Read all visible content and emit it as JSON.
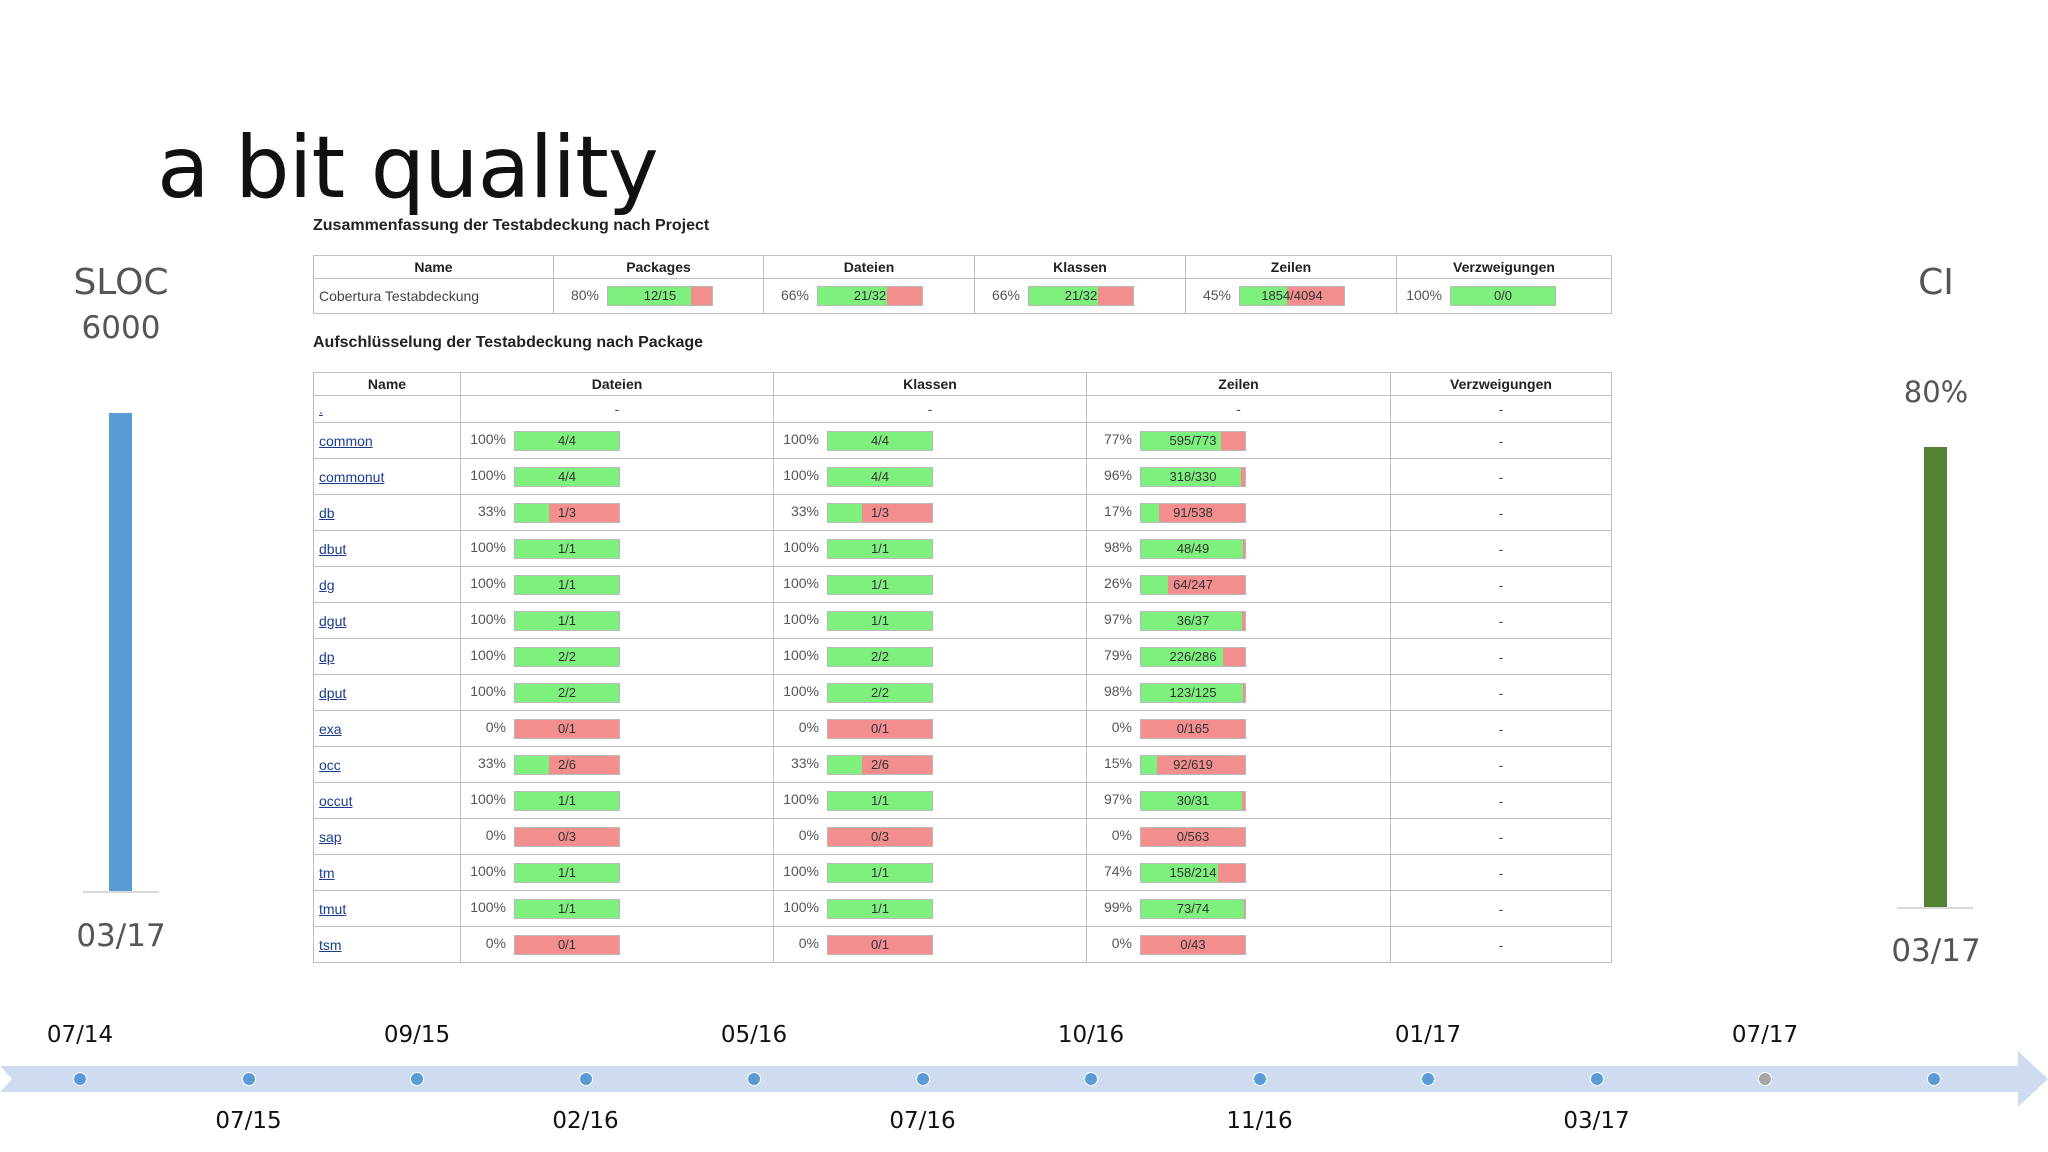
{
  "title": "a bit quality",
  "left": {
    "label": "SLOC",
    "value": "6000",
    "date": "03/17"
  },
  "right": {
    "label": "CI",
    "value": "80%",
    "date": "03/17"
  },
  "summary": {
    "heading": "Zusammenfassung der Testabdeckung nach Project",
    "columns": [
      "Name",
      "Packages",
      "Dateien",
      "Klassen",
      "Zeilen",
      "Verzweigungen"
    ],
    "row": {
      "name": "Cobertura Testabdeckung",
      "cells": [
        {
          "pct": "80%",
          "label": "12/15",
          "fraction": 0.8
        },
        {
          "pct": "66%",
          "label": "21/32",
          "fraction": 0.66
        },
        {
          "pct": "66%",
          "label": "21/32",
          "fraction": 0.66
        },
        {
          "pct": "45%",
          "label": "1854/4094",
          "fraction": 0.45
        },
        {
          "pct": "100%",
          "label": "0/0",
          "fraction": 1.0
        }
      ]
    }
  },
  "packages": {
    "heading": "Aufschlüsselung der Testabdeckung nach Package",
    "columns": [
      "Name",
      "Dateien",
      "Klassen",
      "Zeilen",
      "Verzweigungen"
    ],
    "first_row": {
      "name": ".",
      "dash": "-"
    },
    "rows": [
      {
        "name": "common",
        "dateien": {
          "pct": "100%",
          "label": "4/4",
          "fraction": 1.0
        },
        "klassen": {
          "pct": "100%",
          "label": "4/4",
          "fraction": 1.0
        },
        "zeilen": {
          "pct": "77%",
          "label": "595/773",
          "fraction": 0.77
        },
        "verzweigungen": "-"
      },
      {
        "name": "commonut",
        "dateien": {
          "pct": "100%",
          "label": "4/4",
          "fraction": 1.0
        },
        "klassen": {
          "pct": "100%",
          "label": "4/4",
          "fraction": 1.0
        },
        "zeilen": {
          "pct": "96%",
          "label": "318/330",
          "fraction": 0.96
        },
        "verzweigungen": "-"
      },
      {
        "name": "db",
        "dateien": {
          "pct": "33%",
          "label": "1/3",
          "fraction": 0.33
        },
        "klassen": {
          "pct": "33%",
          "label": "1/3",
          "fraction": 0.33
        },
        "zeilen": {
          "pct": "17%",
          "label": "91/538",
          "fraction": 0.17
        },
        "verzweigungen": "-"
      },
      {
        "name": "dbut",
        "dateien": {
          "pct": "100%",
          "label": "1/1",
          "fraction": 1.0
        },
        "klassen": {
          "pct": "100%",
          "label": "1/1",
          "fraction": 1.0
        },
        "zeilen": {
          "pct": "98%",
          "label": "48/49",
          "fraction": 0.98
        },
        "verzweigungen": "-"
      },
      {
        "name": "dg",
        "dateien": {
          "pct": "100%",
          "label": "1/1",
          "fraction": 1.0
        },
        "klassen": {
          "pct": "100%",
          "label": "1/1",
          "fraction": 1.0
        },
        "zeilen": {
          "pct": "26%",
          "label": "64/247",
          "fraction": 0.26
        },
        "verzweigungen": "-"
      },
      {
        "name": "dgut",
        "dateien": {
          "pct": "100%",
          "label": "1/1",
          "fraction": 1.0
        },
        "klassen": {
          "pct": "100%",
          "label": "1/1",
          "fraction": 1.0
        },
        "zeilen": {
          "pct": "97%",
          "label": "36/37",
          "fraction": 0.97
        },
        "verzweigungen": "-"
      },
      {
        "name": "dp",
        "dateien": {
          "pct": "100%",
          "label": "2/2",
          "fraction": 1.0
        },
        "klassen": {
          "pct": "100%",
          "label": "2/2",
          "fraction": 1.0
        },
        "zeilen": {
          "pct": "79%",
          "label": "226/286",
          "fraction": 0.79
        },
        "verzweigungen": "-"
      },
      {
        "name": "dput",
        "dateien": {
          "pct": "100%",
          "label": "2/2",
          "fraction": 1.0
        },
        "klassen": {
          "pct": "100%",
          "label": "2/2",
          "fraction": 1.0
        },
        "zeilen": {
          "pct": "98%",
          "label": "123/125",
          "fraction": 0.98
        },
        "verzweigungen": "-"
      },
      {
        "name": "exa",
        "dateien": {
          "pct": "0%",
          "label": "0/1",
          "fraction": 0.0
        },
        "klassen": {
          "pct": "0%",
          "label": "0/1",
          "fraction": 0.0
        },
        "zeilen": {
          "pct": "0%",
          "label": "0/165",
          "fraction": 0.0
        },
        "verzweigungen": "-"
      },
      {
        "name": "occ",
        "dateien": {
          "pct": "33%",
          "label": "2/6",
          "fraction": 0.33
        },
        "klassen": {
          "pct": "33%",
          "label": "2/6",
          "fraction": 0.33
        },
        "zeilen": {
          "pct": "15%",
          "label": "92/619",
          "fraction": 0.15
        },
        "verzweigungen": "-"
      },
      {
        "name": "occut",
        "dateien": {
          "pct": "100%",
          "label": "1/1",
          "fraction": 1.0
        },
        "klassen": {
          "pct": "100%",
          "label": "1/1",
          "fraction": 1.0
        },
        "zeilen": {
          "pct": "97%",
          "label": "30/31",
          "fraction": 0.97
        },
        "verzweigungen": "-"
      },
      {
        "name": "sap",
        "dateien": {
          "pct": "0%",
          "label": "0/3",
          "fraction": 0.0
        },
        "klassen": {
          "pct": "0%",
          "label": "0/3",
          "fraction": 0.0
        },
        "zeilen": {
          "pct": "0%",
          "label": "0/563",
          "fraction": 0.0
        },
        "verzweigungen": "-"
      },
      {
        "name": "tm",
        "dateien": {
          "pct": "100%",
          "label": "1/1",
          "fraction": 1.0
        },
        "klassen": {
          "pct": "100%",
          "label": "1/1",
          "fraction": 1.0
        },
        "zeilen": {
          "pct": "74%",
          "label": "158/214",
          "fraction": 0.74
        },
        "verzweigungen": "-"
      },
      {
        "name": "tmut",
        "dateien": {
          "pct": "100%",
          "label": "1/1",
          "fraction": 1.0
        },
        "klassen": {
          "pct": "100%",
          "label": "1/1",
          "fraction": 1.0
        },
        "zeilen": {
          "pct": "99%",
          "label": "73/74",
          "fraction": 0.99
        },
        "verzweigungen": "-"
      },
      {
        "name": "tsm",
        "dateien": {
          "pct": "0%",
          "label": "0/1",
          "fraction": 0.0
        },
        "klassen": {
          "pct": "0%",
          "label": "0/1",
          "fraction": 0.0
        },
        "zeilen": {
          "pct": "0%",
          "label": "0/43",
          "fraction": 0.0
        },
        "verzweigungen": "-"
      }
    ]
  },
  "timeline": {
    "top_labels": [
      "07/14",
      "09/15",
      "05/16",
      "10/16",
      "01/17",
      "07/17"
    ],
    "bottom_labels": [
      "07/15",
      "02/16",
      "07/16",
      "11/16",
      "03/17"
    ]
  },
  "colors": {
    "covered": "#7ef07e",
    "uncovered": "#f28e8e",
    "sloc_bar": "#5b9bd5",
    "ci_bar": "#548235",
    "timeline": "#cfdbee"
  }
}
